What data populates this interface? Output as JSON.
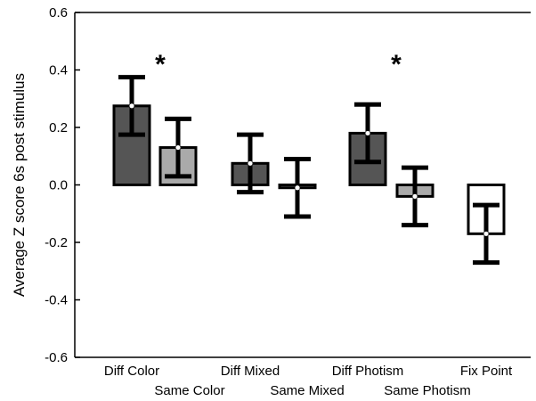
{
  "chart_data": {
    "type": "bar",
    "title": "",
    "xlabel": "",
    "ylabel": "Average Z score 6s post stimulus",
    "ylim": [
      -0.6,
      0.6
    ],
    "yticks": [
      "0.6",
      "0.4",
      "0.2",
      "0.0",
      "-0.2",
      "-0.4",
      "-0.6"
    ],
    "grid": false,
    "categories": [
      "Diff Color",
      "Same Color",
      "Diff Mixed",
      "Same Mixed",
      "Diff Photism",
      "Same Photism",
      "Fix Point"
    ],
    "values": [
      0.275,
      0.13,
      0.075,
      -0.01,
      0.18,
      -0.04,
      -0.17
    ],
    "error": [
      0.1,
      0.1,
      0.1,
      0.1,
      0.1,
      0.1,
      0.1
    ],
    "colors": [
      "#555555",
      "#aaaaaa",
      "#555555",
      "#aaaaaa",
      "#555555",
      "#aaaaaa",
      "#ffffff"
    ],
    "significance": [
      {
        "category": "Diff Color",
        "label": "*"
      },
      {
        "category": "Diff Photism",
        "label": "*"
      }
    ]
  }
}
